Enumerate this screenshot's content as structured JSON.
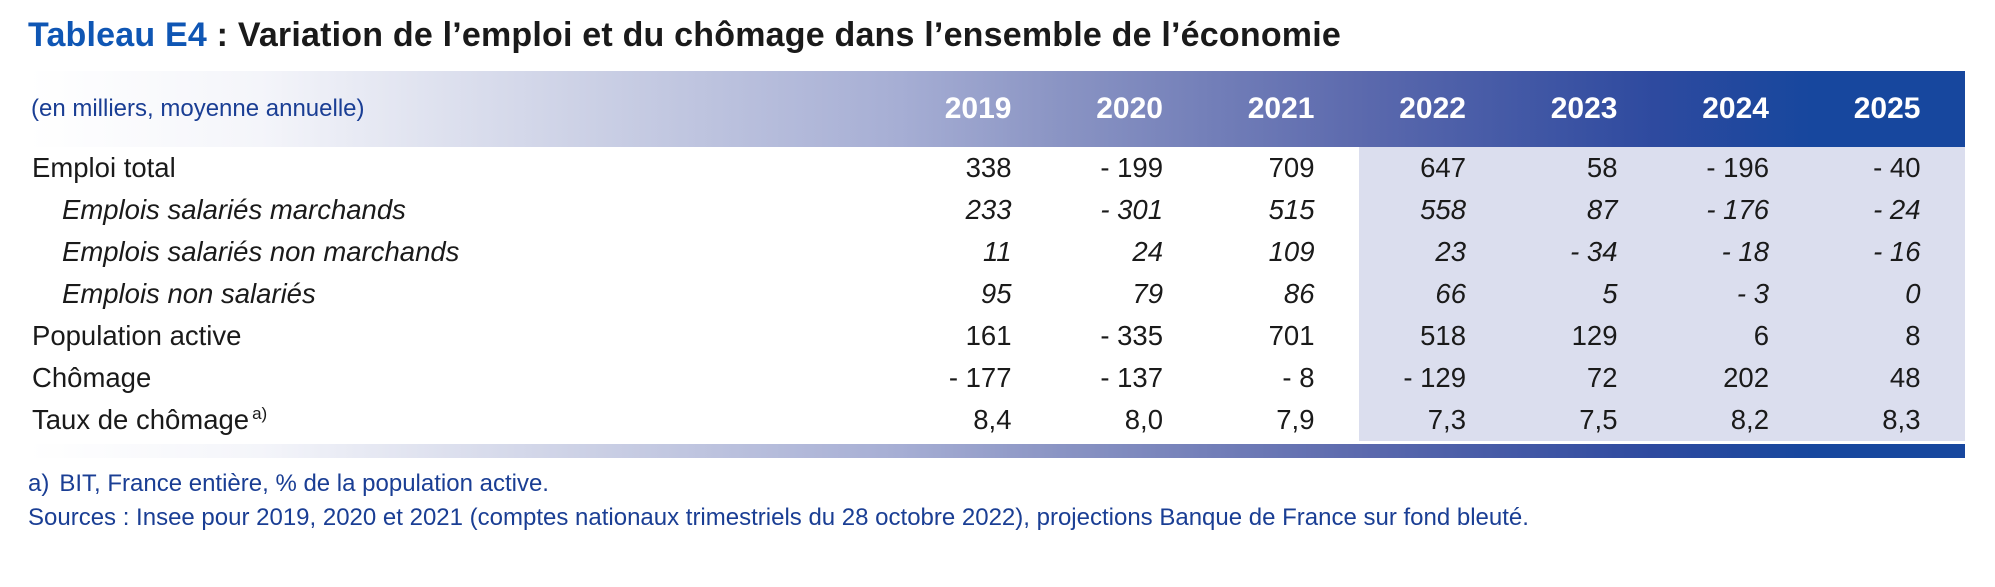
{
  "title": {
    "prefix": "Tableau E4",
    "rest": " : Variation de l’emploi et du chômage dans l’ensemble de l’économie"
  },
  "table": {
    "unit_label": "(en milliers, moyenne annuelle)",
    "years": [
      "2019",
      "2020",
      "2021",
      "2022",
      "2023",
      "2024",
      "2025"
    ],
    "rows": [
      {
        "label": "Emploi total",
        "values": [
          "338",
          "- 199",
          "709",
          "647",
          "58",
          "- 196",
          "- 40"
        ]
      },
      {
        "label": "Emplois salariés marchands",
        "values": [
          "233",
          "- 301",
          "515",
          "558",
          "87",
          "- 176",
          "- 24"
        ]
      },
      {
        "label": "Emplois salariés non marchands",
        "values": [
          "11",
          "24",
          "109",
          "23",
          "- 34",
          "- 18",
          "- 16"
        ]
      },
      {
        "label": "Emplois non salariés",
        "values": [
          "95",
          "79",
          "86",
          "66",
          "5",
          "- 3",
          "0"
        ]
      },
      {
        "label": "Population active",
        "values": [
          "161",
          "- 335",
          "701",
          "518",
          "129",
          "6",
          "8"
        ]
      },
      {
        "label": "Chômage",
        "values": [
          "- 177",
          "- 137",
          "- 8",
          "- 129",
          "72",
          "202",
          "48"
        ]
      },
      {
        "label": "Taux de chômage",
        "note_ref": "a)",
        "values": [
          "8,4",
          "8,0",
          "7,9",
          "7,3",
          "7,5",
          "8,2",
          "8,3"
        ]
      }
    ]
  },
  "notes": {
    "footnote_marker": "a)",
    "footnote_text": "BIT, France entière, % de la population active.",
    "sources": "Sources : Insee pour 2019, 2020 et 2021 (comptes nationaux trimestriels du 28 octobre 2022), projections Banque de France sur fond bleuté."
  },
  "colors": {
    "title_accent": "#0f56b4",
    "header_gradient_start": "#ffffff",
    "header_gradient_mid": "#8b95c4",
    "header_gradient_end": "#17479e",
    "projection_background": "#dbdeee",
    "note_text": "#1a3e94",
    "body_text": "#1a1a1a",
    "year_text": "#ffffff"
  },
  "chart_data": {
    "type": "table",
    "title": "Tableau E4 : Variation de l’emploi et du chômage dans l’ensemble de l’économie",
    "unit": "en milliers, moyenne annuelle",
    "columns": [
      "2019",
      "2020",
      "2021",
      "2022",
      "2023",
      "2024",
      "2025"
    ],
    "projection_columns": [
      "2022",
      "2023",
      "2024",
      "2025"
    ],
    "series": [
      {
        "name": "Emploi total",
        "values": [
          338,
          -199,
          709,
          647,
          58,
          -196,
          -40
        ]
      },
      {
        "name": "Emplois salariés marchands",
        "values": [
          233,
          -301,
          515,
          558,
          87,
          -176,
          -24
        ]
      },
      {
        "name": "Emplois salariés non marchands",
        "values": [
          11,
          24,
          109,
          23,
          -34,
          -18,
          -16
        ]
      },
      {
        "name": "Emplois non salariés",
        "values": [
          95,
          79,
          86,
          66,
          5,
          -3,
          0
        ]
      },
      {
        "name": "Population active",
        "values": [
          161,
          -335,
          701,
          518,
          129,
          6,
          8
        ]
      },
      {
        "name": "Chômage",
        "values": [
          -177,
          -137,
          -8,
          -129,
          72,
          202,
          48
        ]
      },
      {
        "name": "Taux de chômage (%)",
        "values": [
          8.4,
          8.0,
          7.9,
          7.3,
          7.5,
          8.2,
          8.3
        ]
      }
    ]
  }
}
